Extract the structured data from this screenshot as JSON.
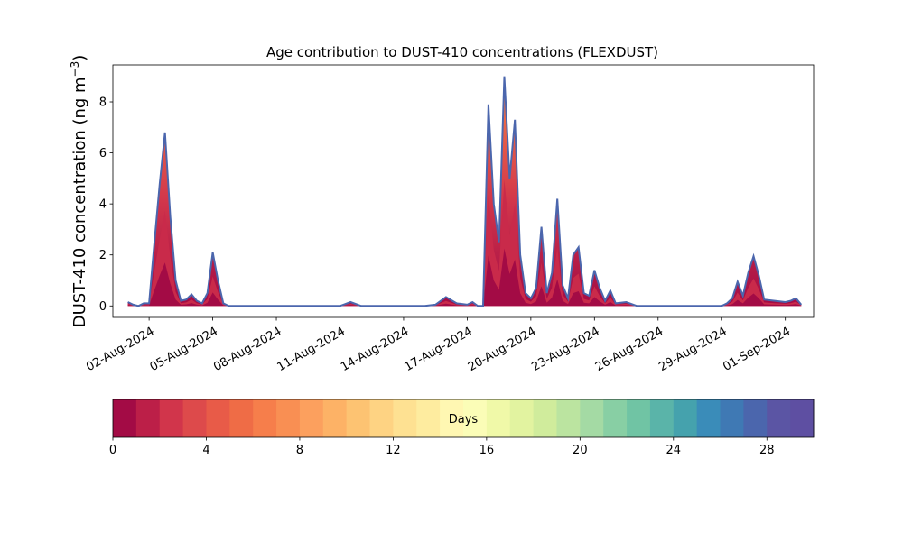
{
  "chart_data": {
    "type": "area",
    "title": "Age contribution to DUST-410 concentrations (FLEXDUST)",
    "ylabel_main": "DUST-410 concentration (ng m",
    "ylabel_sup": "−3",
    "ylabel_close": ")",
    "xlabel": "",
    "ylim": [
      -0.45,
      9.45
    ],
    "y_ticks": [
      0,
      2,
      4,
      6,
      8
    ],
    "x_range_days": [
      "2024-07-31T07:00",
      "2024-09-02T08:00"
    ],
    "x_ticks": [
      "02-Aug-2024",
      "05-Aug-2024",
      "08-Aug-2024",
      "11-Aug-2024",
      "14-Aug-2024",
      "17-Aug-2024",
      "20-Aug-2024",
      "23-Aug-2024",
      "26-Aug-2024",
      "29-Aug-2024",
      "01-Sep-2024"
    ],
    "x_tick_dates": [
      "2024-08-02",
      "2024-08-05",
      "2024-08-08",
      "2024-08-11",
      "2024-08-14",
      "2024-08-17",
      "2024-08-20",
      "2024-08-23",
      "2024-08-26",
      "2024-08-29",
      "2024-09-01"
    ],
    "grid": false,
    "series_description": "stacked contribution by age class 0-30 days; total shown",
    "total": {
      "x": [
        "2024-08-01T00:00",
        "2024-08-01T06:00",
        "2024-08-01T12:00",
        "2024-08-01T18:00",
        "2024-08-02T00:00",
        "2024-08-02T06:00",
        "2024-08-02T12:00",
        "2024-08-02T18:00",
        "2024-08-03T00:00",
        "2024-08-03T06:00",
        "2024-08-03T12:00",
        "2024-08-03T18:00",
        "2024-08-04T00:00",
        "2024-08-04T06:00",
        "2024-08-04T12:00",
        "2024-08-04T18:00",
        "2024-08-05T00:00",
        "2024-08-05T06:00",
        "2024-08-05T12:00",
        "2024-08-05T18:00",
        "2024-08-06T00:00",
        "2024-08-06T12:00",
        "2024-08-07T00:00",
        "2024-08-07T12:00",
        "2024-08-08T00:00",
        "2024-08-08T12:00",
        "2024-08-09T00:00",
        "2024-08-10T00:00",
        "2024-08-11T00:00",
        "2024-08-11T12:00",
        "2024-08-12T00:00",
        "2024-08-13T00:00",
        "2024-08-14T00:00",
        "2024-08-15T00:00",
        "2024-08-15T12:00",
        "2024-08-16T00:00",
        "2024-08-16T12:00",
        "2024-08-17T00:00",
        "2024-08-17T06:00",
        "2024-08-17T12:00",
        "2024-08-17T18:00",
        "2024-08-18T00:00",
        "2024-08-18T06:00",
        "2024-08-18T12:00",
        "2024-08-18T18:00",
        "2024-08-19T00:00",
        "2024-08-19T06:00",
        "2024-08-19T12:00",
        "2024-08-19T18:00",
        "2024-08-20T00:00",
        "2024-08-20T06:00",
        "2024-08-20T12:00",
        "2024-08-20T18:00",
        "2024-08-21T00:00",
        "2024-08-21T06:00",
        "2024-08-21T12:00",
        "2024-08-21T18:00",
        "2024-08-22T00:00",
        "2024-08-22T06:00",
        "2024-08-22T12:00",
        "2024-08-22T18:00",
        "2024-08-23T00:00",
        "2024-08-23T06:00",
        "2024-08-23T12:00",
        "2024-08-23T18:00",
        "2024-08-24T00:00",
        "2024-08-24T12:00",
        "2024-08-25T00:00",
        "2024-08-26T00:00",
        "2024-08-27T00:00",
        "2024-08-28T00:00",
        "2024-08-29T00:00",
        "2024-08-29T06:00",
        "2024-08-29T12:00",
        "2024-08-29T18:00",
        "2024-08-30T00:00",
        "2024-08-30T06:00",
        "2024-08-30T12:00",
        "2024-08-30T18:00",
        "2024-08-31T00:00",
        "2024-08-31T12:00",
        "2024-09-01T00:00",
        "2024-09-01T06:00",
        "2024-09-01T12:00",
        "2024-09-01T18:00"
      ],
      "y": [
        0.15,
        0.05,
        0.0,
        0.1,
        0.1,
        2.5,
        4.8,
        6.8,
        3.5,
        1.0,
        0.2,
        0.25,
        0.45,
        0.2,
        0.1,
        0.5,
        2.1,
        1.0,
        0.1,
        0.0,
        0.0,
        0.0,
        0.0,
        0.0,
        0.0,
        0.0,
        0.0,
        0.0,
        0.0,
        0.15,
        0.0,
        0.0,
        0.0,
        0.0,
        0.05,
        0.35,
        0.1,
        0.05,
        0.15,
        0.0,
        0.0,
        7.9,
        4.0,
        2.5,
        9.0,
        5.0,
        7.3,
        2.0,
        0.5,
        0.3,
        0.7,
        3.1,
        0.5,
        1.3,
        4.2,
        0.8,
        0.3,
        2.0,
        2.3,
        0.5,
        0.4,
        1.4,
        0.7,
        0.2,
        0.6,
        0.1,
        0.15,
        0.0,
        0.0,
        0.0,
        0.0,
        0.0,
        0.1,
        0.3,
        0.95,
        0.4,
        1.3,
        1.95,
        1.2,
        0.25,
        0.2,
        0.15,
        0.2,
        0.3,
        0.05
      ]
    }
  },
  "colorbar": {
    "label": "Days",
    "range": [
      0,
      30
    ],
    "n_bins": 30,
    "ticks": [
      0,
      4,
      8,
      12,
      16,
      20,
      24,
      28
    ],
    "colors": [
      "#a30b45",
      "#bc1f48",
      "#d1354b",
      "#dd4a4b",
      "#e85b48",
      "#ef6c46",
      "#f67e4b",
      "#f98f53",
      "#fca05e",
      "#fdb266",
      "#fdc372",
      "#fed383",
      "#fee192",
      "#feec9f",
      "#fff7b2",
      "#fbfdb7",
      "#f0f9a8",
      "#e2f3a0",
      "#d0ec9c",
      "#bbe4a0",
      "#a4daa4",
      "#88cfa4",
      "#70c4a4",
      "#5ab4a9",
      "#45a2ad",
      "#3a8cb9",
      "#3f79b4",
      "#4b66ad",
      "#5b55a4",
      "#5e4fa2"
    ]
  }
}
